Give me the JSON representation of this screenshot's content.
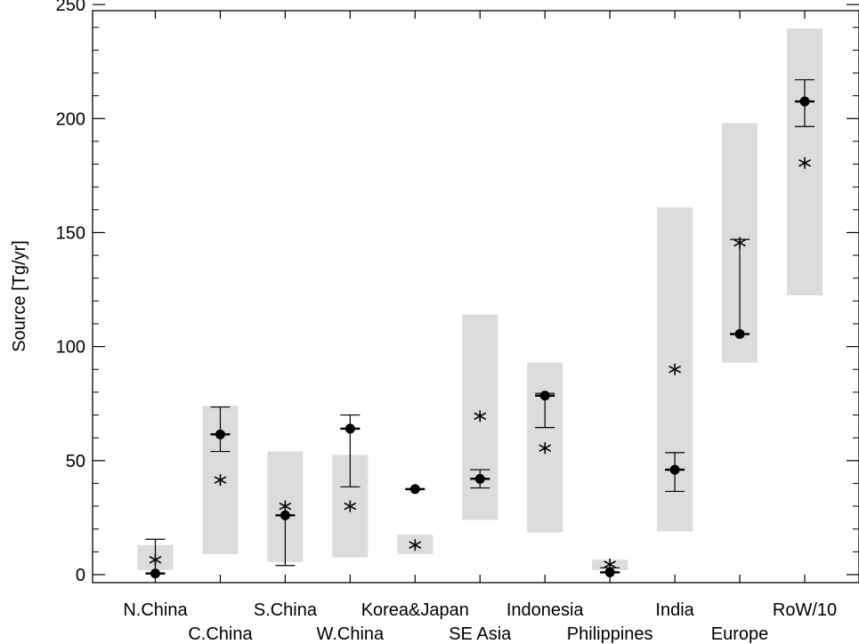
{
  "chart_data": {
    "type": "scatter",
    "ylabel": "Source [Tg/yr]",
    "ylim": [
      0,
      250
    ],
    "yticks": [
      0,
      50,
      100,
      150,
      200,
      250
    ],
    "grid": false,
    "colors": {
      "range_box": "#dcdcdc",
      "marker": "#000000",
      "axis": "#000000"
    },
    "categories": [
      "N.China",
      "C.China",
      "S.China",
      "W.China",
      "Korea&Japan",
      "SE Asia",
      "Indonesia",
      "Philippines",
      "India",
      "Europe",
      "RoW/10"
    ],
    "series": [
      {
        "marker": "range-box",
        "low": [
          2,
          9,
          5.5,
          7.5,
          9,
          24,
          18.5,
          2,
          19,
          93,
          122.5
        ],
        "high": [
          13,
          74,
          54,
          52.5,
          17.5,
          114,
          93,
          6.5,
          161,
          198,
          239.5
        ]
      },
      {
        "marker": "filled-circle",
        "values": [
          0.5,
          61.5,
          26,
          64,
          37.5,
          42,
          78.5,
          1,
          46,
          105.5,
          207.5
        ],
        "err_low": [
          0.5,
          54,
          4,
          38.5,
          37.5,
          38,
          64.5,
          1,
          36.5,
          105.5,
          196.5
        ],
        "err_high": [
          15.5,
          73.5,
          26,
          70,
          37.5,
          46,
          79.5,
          3,
          53.5,
          147,
          217
        ]
      },
      {
        "marker": "asterisk",
        "values": [
          6.5,
          41.5,
          30,
          30,
          13,
          69.5,
          55.5,
          4.5,
          90,
          145.5,
          180.5
        ]
      }
    ]
  }
}
